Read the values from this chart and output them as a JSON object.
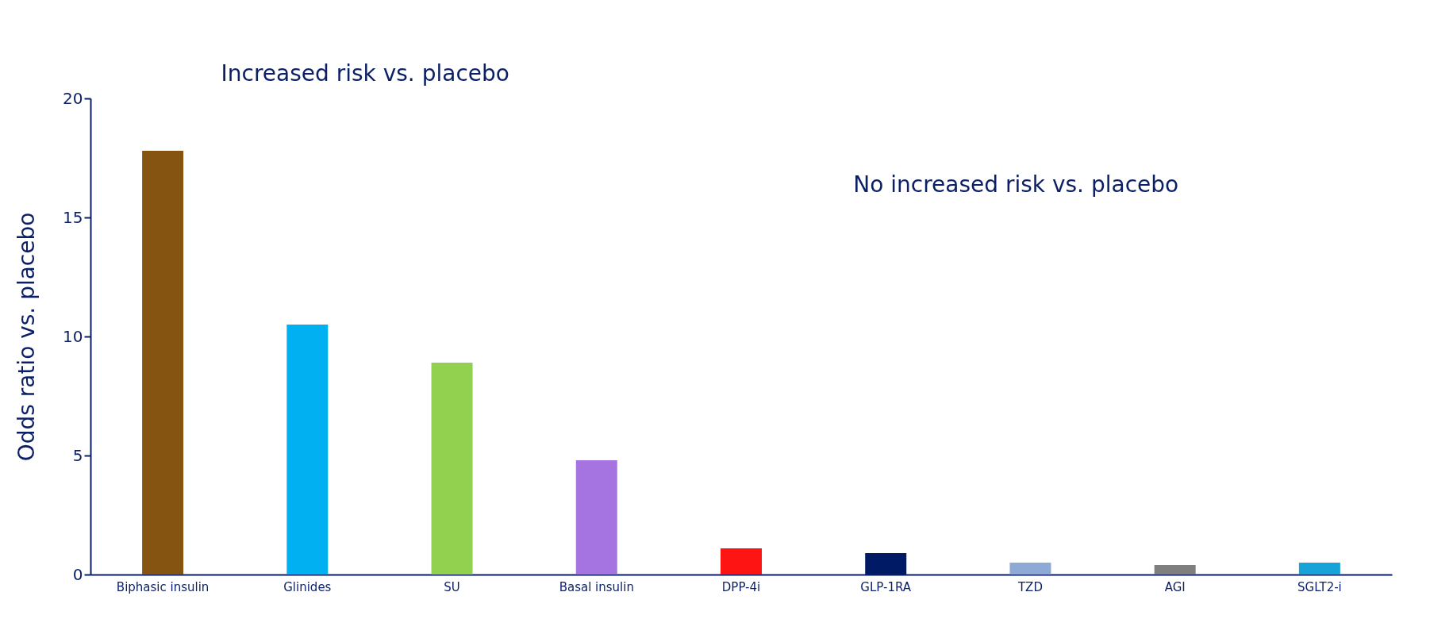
{
  "chart_data": {
    "type": "bar",
    "ylabel": "Odds ratio vs. placebo",
    "categories": [
      "Biphasic insulin",
      "Glinides",
      "SU",
      "Basal insulin",
      "DPP-4i",
      "GLP-1RA",
      "TZD",
      "AGI",
      "SGLT2-i"
    ],
    "values": [
      17.8,
      10.5,
      8.9,
      4.8,
      1.1,
      0.9,
      0.5,
      0.4,
      0.5
    ],
    "colors": [
      "#865411",
      "#00b0f0",
      "#92d050",
      "#a574e0",
      "#ff1414",
      "#001a66",
      "#8fa9d6",
      "#7f7f7f",
      "#17a3d8"
    ],
    "ylim": [
      0,
      20
    ],
    "yticks": [
      0,
      5,
      10,
      15,
      20
    ],
    "grid": false,
    "annotations": [
      "Increased risk vs. placebo",
      "No increased risk vs. placebo"
    ]
  }
}
